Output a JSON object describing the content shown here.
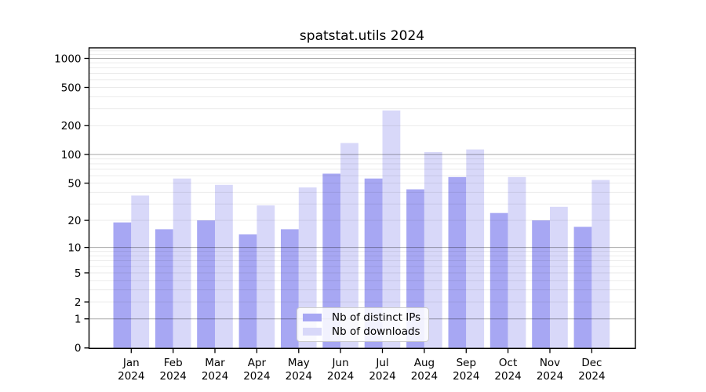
{
  "chart_data": {
    "type": "bar",
    "title": "spatstat.utils 2024",
    "xlabel": "",
    "ylabel": "",
    "year_label": "2024",
    "categories": [
      "Jan",
      "Feb",
      "Mar",
      "Apr",
      "May",
      "Jun",
      "Jul",
      "Aug",
      "Sep",
      "Oct",
      "Nov",
      "Dec"
    ],
    "series": [
      {
        "name": "Nb of distinct IPs",
        "color": "#a7a7f3",
        "values": [
          19,
          16,
          20,
          14,
          16,
          63,
          56,
          43,
          58,
          24,
          20,
          17
        ]
      },
      {
        "name": "Nb of downloads",
        "color": "#d8d8f9",
        "values": [
          37,
          56,
          48,
          29,
          45,
          132,
          288,
          106,
          113,
          58,
          28,
          54
        ]
      }
    ],
    "yscale": "log10(1+y)",
    "yticks": [
      0,
      1,
      2,
      5,
      10,
      20,
      50,
      100,
      200,
      500,
      1000
    ],
    "ylim": [
      0,
      1275
    ],
    "grid": {
      "major_lines": [
        1,
        10,
        100,
        1000
      ],
      "minor_multipliers": [
        2,
        3,
        4,
        5,
        6,
        7,
        8,
        9
      ],
      "minor_decades": [
        1,
        10,
        100
      ],
      "minor_extra": [
        1100,
        1200
      ],
      "vertical_lines": false
    },
    "legend_position": "bottom-center",
    "axis_color": "#000000",
    "major_grid_color": "rgba(0,0,0,0.34)",
    "minor_grid_color": "rgba(0,0,0,0.085)"
  }
}
